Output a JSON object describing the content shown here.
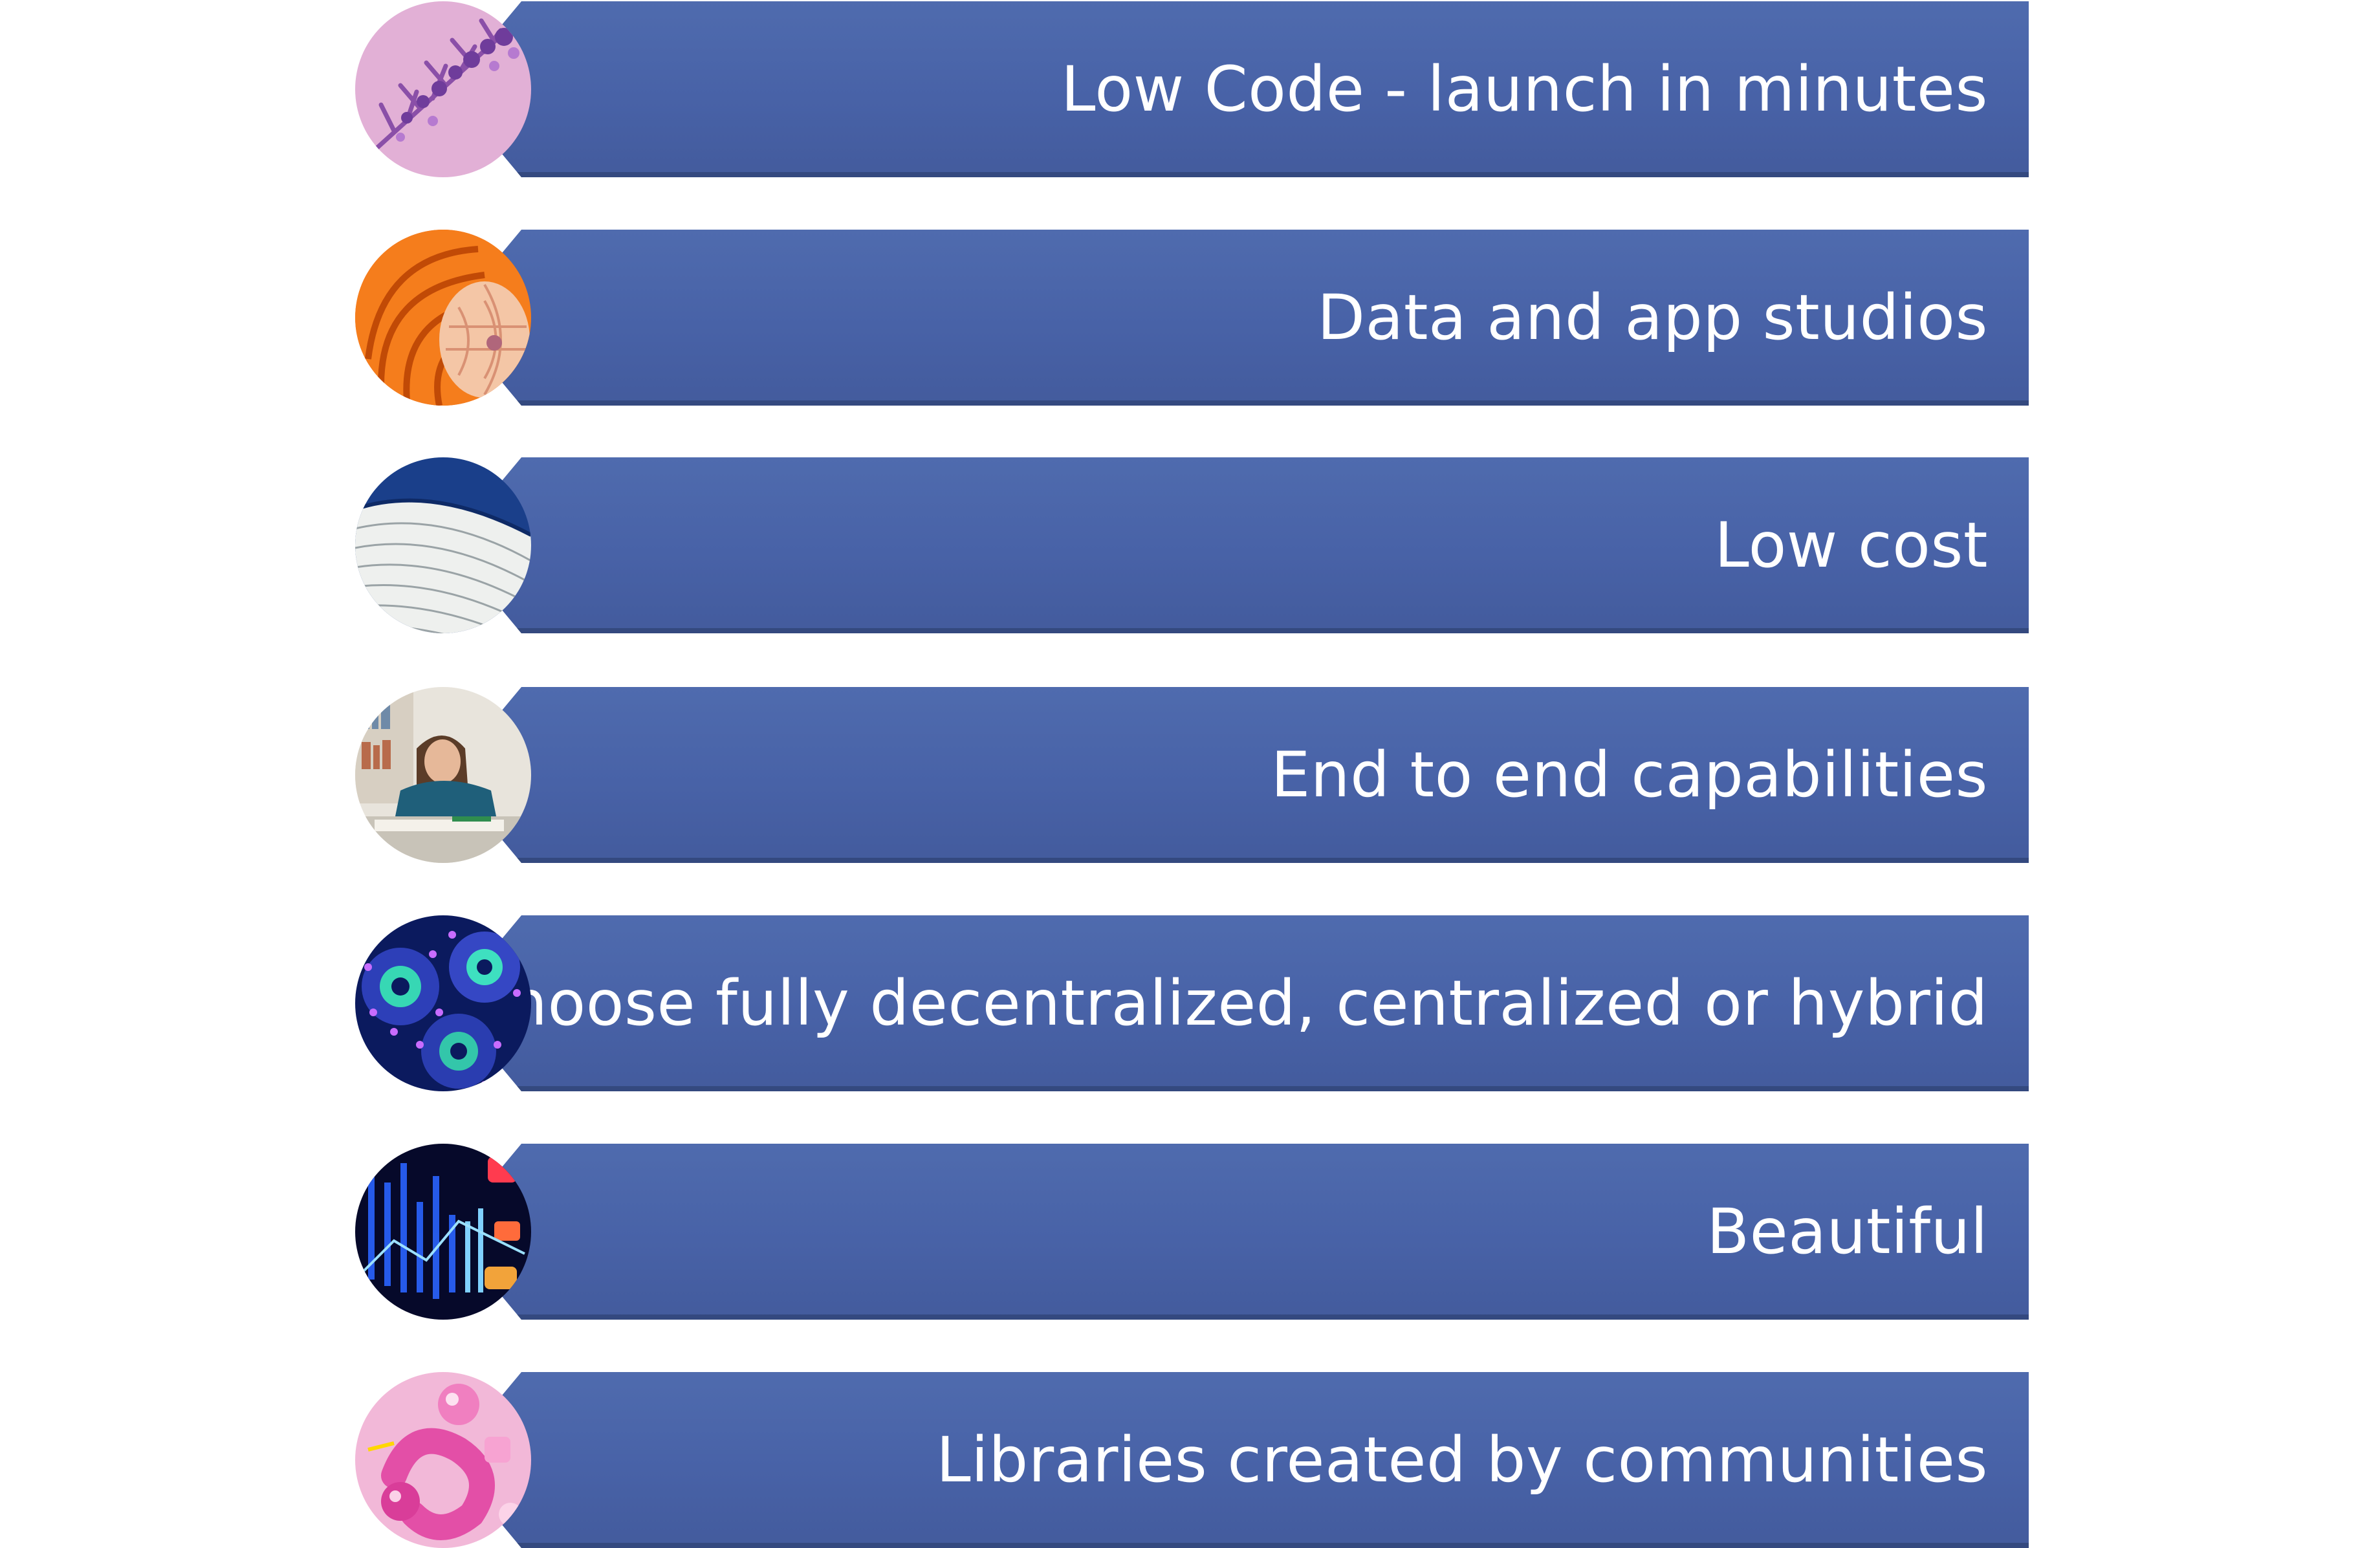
{
  "items": [
    {
      "label": "Low Code - launch in minutes",
      "image": "purple-lavender-sprig-image"
    },
    {
      "label": "Data and app studios",
      "image": "orange-nautilus-shell-image"
    },
    {
      "label": "Low cost",
      "image": "blue-white-curved-architecture-image"
    },
    {
      "label": "End to end capabilities",
      "image": "girl-drawing-at-desk-image"
    },
    {
      "label": "Choose fully decentralized, centralized or hybrid",
      "image": "blue-coral-polyps-image"
    },
    {
      "label": "Beautiful",
      "image": "neon-data-lights-image"
    },
    {
      "label": "Libraries created by communities",
      "image": "pink-3d-abstract-shapes-image"
    }
  ],
  "colors": {
    "bar": "#4862a7",
    "bar_bottom": "#34497f",
    "text": "#ffffff"
  }
}
